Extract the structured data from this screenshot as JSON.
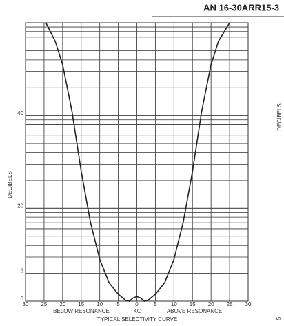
{
  "header": "AN 16-30ARR15-3",
  "chart_data": {
    "type": "line",
    "title": "TYPICAL SELECTIVITY CURVE",
    "y_label": "DECIBELS",
    "y_label_right": "DECIBELS",
    "x_label": "KC",
    "x_label_left": "BELOW RESONANCE",
    "x_label_right": "ABOVE RESONANCE",
    "x": [
      -24.5,
      -22,
      -20,
      -17.5,
      -15,
      -12.5,
      -10,
      -7.5,
      -5,
      -3,
      -2,
      -1,
      0,
      1,
      2,
      3,
      5,
      7.5,
      10,
      12.5,
      15,
      17.5,
      20,
      22,
      25
    ],
    "series": [
      {
        "color": "#222",
        "values": [
          60,
          56,
          51,
          41,
          28,
          17,
          9,
          4,
          1.5,
          0.2,
          0,
          0.7,
          1,
          0.7,
          0,
          0.2,
          1.5,
          4,
          9,
          17,
          28,
          41,
          51,
          56,
          60
        ]
      }
    ],
    "xlim": [
      -30,
      30
    ],
    "xticks": [
      {
        "value": -30,
        "label": "30"
      },
      {
        "value": -25,
        "label": "25"
      },
      {
        "value": -20,
        "label": "20"
      },
      {
        "value": -15,
        "label": "15"
      },
      {
        "value": -10,
        "label": "10"
      },
      {
        "value": -5,
        "label": "5"
      },
      0,
      5,
      10,
      15,
      20,
      25,
      30
    ],
    "ylim": [
      0,
      60
    ],
    "yticks": [
      0,
      6,
      20,
      40
    ],
    "grid_levels": [
      9.5,
      12,
      14,
      15.6,
      16.9,
      18.1,
      19.1,
      20,
      26,
      29.5,
      32,
      34,
      35.6,
      36.9,
      38.1,
      39.1,
      40,
      46,
      49.5,
      52,
      54,
      55.6,
      56.9,
      58.1,
      59.1,
      60
    ],
    "grid": true
  },
  "page_number": "5"
}
